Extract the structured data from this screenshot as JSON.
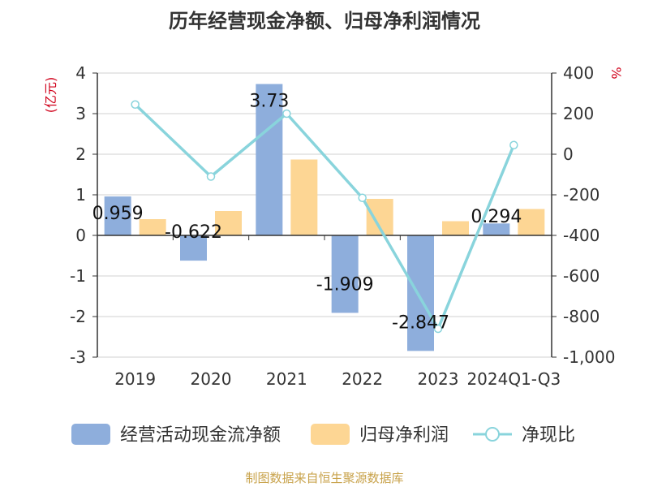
{
  "title": "历年经营现金净额、归母净利润情况",
  "source": "制图数据来自恒生聚源数据库",
  "chart_data": {
    "type": "bar",
    "categories": [
      "2019",
      "2020",
      "2021",
      "2022",
      "2023",
      "2024Q1-Q3"
    ],
    "left_axis": {
      "unit": "(亿元)",
      "min": -3,
      "max": 4,
      "ticks": [
        "-3",
        "-2",
        "-1",
        "0",
        "1",
        "2",
        "3",
        "4"
      ]
    },
    "right_axis": {
      "unit": "%",
      "min": -1000,
      "max": 400,
      "ticks": [
        "-1,000",
        "-800",
        "-600",
        "-400",
        "-200",
        "0",
        "200",
        "400"
      ]
    },
    "series": [
      {
        "name": "经营活动现金流净额",
        "type": "bar",
        "axis": "left",
        "color": "#8eaedc",
        "values": [
          0.959,
          -0.622,
          3.73,
          -1.909,
          -2.847,
          0.294
        ],
        "labels": [
          "0.959",
          "-0.622",
          "3.73",
          "-1.909",
          "-2.847",
          "0.294"
        ]
      },
      {
        "name": "归母净利润",
        "type": "bar",
        "axis": "left",
        "color": "#fdd694",
        "values": [
          0.4,
          0.6,
          1.87,
          0.9,
          0.35,
          0.65
        ]
      },
      {
        "name": "净现比",
        "type": "line",
        "axis": "right",
        "color": "#89d4dc",
        "values": [
          245,
          -110,
          200,
          -215,
          -860,
          45
        ]
      }
    ],
    "legend_position": "bottom",
    "grid": true
  }
}
